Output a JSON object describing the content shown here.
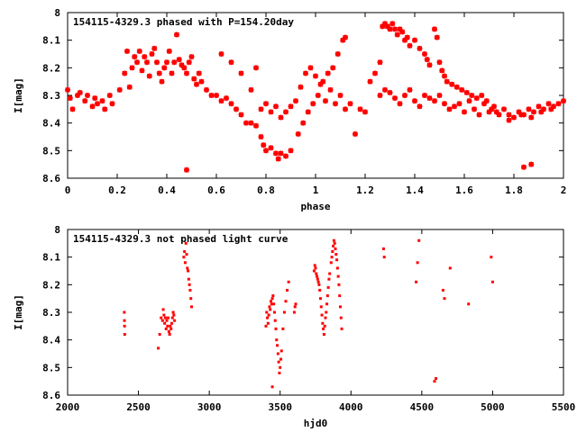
{
  "colors": {
    "series": "#ff0000",
    "axis": "#000000",
    "background": "#ffffff"
  },
  "chart_data": [
    {
      "type": "scatter",
      "title": "154115-4329.3 phased with P=154.20day",
      "xlabel": "phase",
      "ylabel": "I[mag]",
      "xlim": [
        0,
        2
      ],
      "ylim": [
        8.6,
        8.0
      ],
      "y_inverted": true,
      "grid": false,
      "marker": "star",
      "xticks": [
        "0",
        "0.2",
        "0.4",
        "0.6",
        "0.8",
        "1",
        "1.2",
        "1.4",
        "1.6",
        "1.8",
        "2"
      ],
      "yticks": [
        "8",
        "8.1",
        "8.2",
        "8.3",
        "8.4",
        "8.5",
        "8.6"
      ],
      "base_points": [
        [
          0.0,
          8.28
        ],
        [
          0.01,
          8.31
        ],
        [
          0.02,
          8.35
        ],
        [
          0.04,
          8.3
        ],
        [
          0.05,
          8.29
        ],
        [
          0.07,
          8.32
        ],
        [
          0.08,
          8.3
        ],
        [
          0.1,
          8.34
        ],
        [
          0.11,
          8.31
        ],
        [
          0.12,
          8.33
        ],
        [
          0.14,
          8.32
        ],
        [
          0.15,
          8.35
        ],
        [
          0.17,
          8.3
        ],
        [
          0.18,
          8.33
        ],
        [
          0.21,
          8.28
        ],
        [
          0.23,
          8.22
        ],
        [
          0.24,
          8.14
        ],
        [
          0.25,
          8.27
        ],
        [
          0.26,
          8.2
        ],
        [
          0.27,
          8.16
        ],
        [
          0.28,
          8.18
        ],
        [
          0.29,
          8.14
        ],
        [
          0.3,
          8.21
        ],
        [
          0.31,
          8.16
        ],
        [
          0.32,
          8.18
        ],
        [
          0.33,
          8.23
        ],
        [
          0.34,
          8.15
        ],
        [
          0.35,
          8.13
        ],
        [
          0.36,
          8.18
        ],
        [
          0.37,
          8.22
        ],
        [
          0.38,
          8.25
        ],
        [
          0.39,
          8.2
        ],
        [
          0.4,
          8.18
        ],
        [
          0.41,
          8.14
        ],
        [
          0.42,
          8.22
        ],
        [
          0.43,
          8.18
        ],
        [
          0.44,
          8.08
        ],
        [
          0.45,
          8.17
        ],
        [
          0.46,
          8.19
        ],
        [
          0.47,
          8.2
        ],
        [
          0.48,
          8.22
        ],
        [
          0.49,
          8.18
        ],
        [
          0.5,
          8.16
        ],
        [
          0.51,
          8.24
        ],
        [
          0.52,
          8.26
        ],
        [
          0.53,
          8.22
        ],
        [
          0.54,
          8.25
        ],
        [
          0.56,
          8.28
        ],
        [
          0.58,
          8.3
        ],
        [
          0.6,
          8.3
        ],
        [
          0.62,
          8.32
        ],
        [
          0.64,
          8.31
        ],
        [
          0.66,
          8.33
        ],
        [
          0.68,
          8.35
        ],
        [
          0.7,
          8.37
        ],
        [
          0.72,
          8.4
        ],
        [
          0.74,
          8.4
        ],
        [
          0.76,
          8.41
        ],
        [
          0.78,
          8.45
        ],
        [
          0.79,
          8.48
        ],
        [
          0.8,
          8.5
        ],
        [
          0.82,
          8.49
        ],
        [
          0.84,
          8.51
        ],
        [
          0.85,
          8.53
        ],
        [
          0.86,
          8.51
        ],
        [
          0.88,
          8.52
        ],
        [
          0.9,
          8.5
        ],
        [
          0.78,
          8.35
        ],
        [
          0.8,
          8.33
        ],
        [
          0.82,
          8.36
        ],
        [
          0.84,
          8.34
        ],
        [
          0.86,
          8.38
        ],
        [
          0.88,
          8.36
        ],
        [
          0.9,
          8.34
        ],
        [
          0.93,
          8.44
        ],
        [
          0.95,
          8.4
        ],
        [
          0.97,
          8.36
        ],
        [
          0.99,
          8.33
        ],
        [
          1.01,
          8.3
        ],
        [
          1.03,
          8.25
        ],
        [
          1.05,
          8.22
        ],
        [
          1.07,
          8.2
        ],
        [
          1.09,
          8.15
        ],
        [
          1.11,
          8.1
        ],
        [
          1.12,
          8.09
        ],
        [
          0.94,
          8.27
        ],
        [
          0.96,
          8.22
        ],
        [
          0.98,
          8.2
        ],
        [
          1.0,
          8.23
        ],
        [
          1.02,
          8.26
        ],
        [
          1.04,
          8.32
        ],
        [
          1.06,
          8.28
        ],
        [
          1.08,
          8.33
        ],
        [
          1.1,
          8.3
        ],
        [
          1.12,
          8.35
        ],
        [
          1.14,
          8.33
        ],
        [
          1.16,
          8.44
        ],
        [
          1.18,
          8.35
        ],
        [
          1.2,
          8.36
        ],
        [
          1.22,
          8.25
        ],
        [
          1.24,
          8.22
        ],
        [
          1.26,
          8.18
        ],
        [
          1.27,
          8.05
        ],
        [
          1.28,
          8.04
        ],
        [
          1.29,
          8.05
        ],
        [
          1.3,
          8.06
        ],
        [
          1.31,
          8.04
        ],
        [
          1.32,
          8.06
        ],
        [
          1.33,
          8.08
        ],
        [
          1.34,
          8.06
        ],
        [
          1.35,
          8.07
        ],
        [
          1.36,
          8.1
        ],
        [
          1.37,
          8.09
        ],
        [
          1.38,
          8.12
        ],
        [
          1.4,
          8.1
        ],
        [
          1.42,
          8.13
        ],
        [
          1.44,
          8.15
        ],
        [
          1.45,
          8.17
        ],
        [
          1.46,
          8.19
        ],
        [
          1.48,
          8.06
        ],
        [
          1.49,
          8.09
        ],
        [
          1.5,
          8.18
        ],
        [
          1.51,
          8.21
        ],
        [
          1.52,
          8.23
        ],
        [
          1.53,
          8.25
        ],
        [
          1.55,
          8.26
        ],
        [
          1.57,
          8.27
        ],
        [
          1.59,
          8.28
        ],
        [
          1.61,
          8.29
        ],
        [
          1.63,
          8.3
        ],
        [
          1.65,
          8.31
        ],
        [
          1.67,
          8.3
        ],
        [
          1.69,
          8.32
        ],
        [
          1.71,
          8.35
        ],
        [
          1.26,
          8.3
        ],
        [
          1.28,
          8.28
        ],
        [
          1.3,
          8.29
        ],
        [
          1.32,
          8.31
        ],
        [
          1.34,
          8.33
        ],
        [
          1.36,
          8.3
        ],
        [
          1.38,
          8.28
        ],
        [
          1.4,
          8.32
        ],
        [
          1.42,
          8.34
        ],
        [
          1.44,
          8.3
        ],
        [
          1.46,
          8.31
        ],
        [
          1.48,
          8.32
        ],
        [
          1.5,
          8.3
        ],
        [
          1.52,
          8.33
        ],
        [
          1.54,
          8.35
        ],
        [
          1.56,
          8.34
        ],
        [
          1.58,
          8.33
        ],
        [
          1.6,
          8.36
        ],
        [
          1.62,
          8.32
        ],
        [
          1.64,
          8.35
        ],
        [
          1.66,
          8.37
        ],
        [
          1.68,
          8.33
        ],
        [
          1.7,
          8.36
        ],
        [
          1.72,
          8.34
        ],
        [
          1.73,
          8.36
        ],
        [
          1.74,
          8.37
        ],
        [
          1.76,
          8.35
        ],
        [
          1.78,
          8.37
        ],
        [
          1.8,
          8.38
        ],
        [
          1.82,
          8.36
        ],
        [
          1.84,
          8.37
        ],
        [
          1.86,
          8.35
        ],
        [
          1.88,
          8.36
        ],
        [
          1.9,
          8.34
        ],
        [
          1.92,
          8.35
        ],
        [
          1.94,
          8.33
        ],
        [
          1.96,
          8.34
        ],
        [
          1.98,
          8.33
        ],
        [
          2.0,
          8.32
        ],
        [
          1.78,
          8.39
        ],
        [
          1.83,
          8.37
        ],
        [
          1.87,
          8.38
        ],
        [
          1.91,
          8.36
        ],
        [
          1.95,
          8.35
        ],
        [
          0.48,
          8.57
        ],
        [
          1.84,
          8.56
        ],
        [
          1.87,
          8.55
        ],
        [
          0.62,
          8.15
        ],
        [
          0.66,
          8.18
        ],
        [
          0.7,
          8.22
        ],
        [
          0.74,
          8.28
        ],
        [
          0.76,
          8.2
        ],
        [
          0.92,
          8.32
        ]
      ]
    },
    {
      "type": "scatter",
      "title": "154115-4329.3 not phased light curve",
      "xlabel": "hjd0",
      "ylabel": "I[mag]",
      "xlim": [
        2000,
        5500
      ],
      "ylim": [
        8.6,
        8.0
      ],
      "y_inverted": true,
      "grid": false,
      "marker": "dot",
      "xticks": [
        "2000",
        "2500",
        "3000",
        "3500",
        "4000",
        "4500",
        "5000",
        "5500"
      ],
      "yticks": [
        "8",
        "8.1",
        "8.2",
        "8.3",
        "8.4",
        "8.5",
        "8.6"
      ],
      "points": [
        [
          2400,
          8.3
        ],
        [
          2401,
          8.33
        ],
        [
          2402,
          8.35
        ],
        [
          2403,
          8.38
        ],
        [
          2640,
          8.43
        ],
        [
          2650,
          8.38
        ],
        [
          2660,
          8.32
        ],
        [
          2670,
          8.33
        ],
        [
          2675,
          8.29
        ],
        [
          2680,
          8.31
        ],
        [
          2685,
          8.34
        ],
        [
          2690,
          8.32
        ],
        [
          2695,
          8.36
        ],
        [
          2700,
          8.33
        ],
        [
          2705,
          8.35
        ],
        [
          2710,
          8.32
        ],
        [
          2715,
          8.37
        ],
        [
          2720,
          8.38
        ],
        [
          2725,
          8.35
        ],
        [
          2730,
          8.36
        ],
        [
          2735,
          8.34
        ],
        [
          2740,
          8.32
        ],
        [
          2745,
          8.3
        ],
        [
          2750,
          8.31
        ],
        [
          2755,
          8.33
        ],
        [
          2820,
          8.1
        ],
        [
          2825,
          8.08
        ],
        [
          2830,
          8.12
        ],
        [
          2835,
          8.05
        ],
        [
          2840,
          8.09
        ],
        [
          2845,
          8.14
        ],
        [
          2850,
          8.15
        ],
        [
          2855,
          8.18
        ],
        [
          2860,
          8.2
        ],
        [
          2865,
          8.22
        ],
        [
          2870,
          8.25
        ],
        [
          2875,
          8.28
        ],
        [
          3400,
          8.35
        ],
        [
          3405,
          8.3
        ],
        [
          3410,
          8.32
        ],
        [
          3415,
          8.34
        ],
        [
          3420,
          8.31
        ],
        [
          3425,
          8.28
        ],
        [
          3430,
          8.29
        ],
        [
          3435,
          8.26
        ],
        [
          3440,
          8.27
        ],
        [
          3445,
          8.25
        ],
        [
          3450,
          8.24
        ],
        [
          3455,
          8.27
        ],
        [
          3460,
          8.3
        ],
        [
          3465,
          8.33
        ],
        [
          3470,
          8.36
        ],
        [
          3475,
          8.4
        ],
        [
          3480,
          8.42
        ],
        [
          3485,
          8.45
        ],
        [
          3490,
          8.48
        ],
        [
          3495,
          8.52
        ],
        [
          3500,
          8.5
        ],
        [
          3505,
          8.47
        ],
        [
          3510,
          8.44
        ],
        [
          3520,
          8.36
        ],
        [
          3530,
          8.3
        ],
        [
          3540,
          8.26
        ],
        [
          3550,
          8.22
        ],
        [
          3560,
          8.19
        ],
        [
          3445,
          8.57
        ],
        [
          3600,
          8.3
        ],
        [
          3605,
          8.28
        ],
        [
          3610,
          8.27
        ],
        [
          3740,
          8.15
        ],
        [
          3745,
          8.13
        ],
        [
          3750,
          8.14
        ],
        [
          3755,
          8.16
        ],
        [
          3760,
          8.17
        ],
        [
          3765,
          8.18
        ],
        [
          3770,
          8.19
        ],
        [
          3775,
          8.2
        ],
        [
          3780,
          8.22
        ],
        [
          3785,
          8.25
        ],
        [
          3790,
          8.28
        ],
        [
          3795,
          8.31
        ],
        [
          3800,
          8.34
        ],
        [
          3805,
          8.36
        ],
        [
          3810,
          8.38
        ],
        [
          3815,
          8.35
        ],
        [
          3820,
          8.32
        ],
        [
          3825,
          8.3
        ],
        [
          3830,
          8.27
        ],
        [
          3835,
          8.24
        ],
        [
          3840,
          8.21
        ],
        [
          3845,
          8.18
        ],
        [
          3850,
          8.16
        ],
        [
          3860,
          8.12
        ],
        [
          3865,
          8.1
        ],
        [
          3870,
          8.08
        ],
        [
          3875,
          8.06
        ],
        [
          3880,
          8.04
        ],
        [
          3885,
          8.05
        ],
        [
          3890,
          8.07
        ],
        [
          3895,
          8.09
        ],
        [
          3900,
          8.11
        ],
        [
          3905,
          8.14
        ],
        [
          3910,
          8.17
        ],
        [
          3915,
          8.2
        ],
        [
          3920,
          8.24
        ],
        [
          3925,
          8.28
        ],
        [
          3930,
          8.32
        ],
        [
          3935,
          8.36
        ],
        [
          4230,
          8.07
        ],
        [
          4235,
          8.1
        ],
        [
          4460,
          8.19
        ],
        [
          4470,
          8.12
        ],
        [
          4480,
          8.04
        ],
        [
          4590,
          8.55
        ],
        [
          4600,
          8.54
        ],
        [
          4650,
          8.22
        ],
        [
          4660,
          8.25
        ],
        [
          4700,
          8.14
        ],
        [
          4830,
          8.27
        ],
        [
          4990,
          8.1
        ],
        [
          5000,
          8.19
        ]
      ]
    }
  ]
}
